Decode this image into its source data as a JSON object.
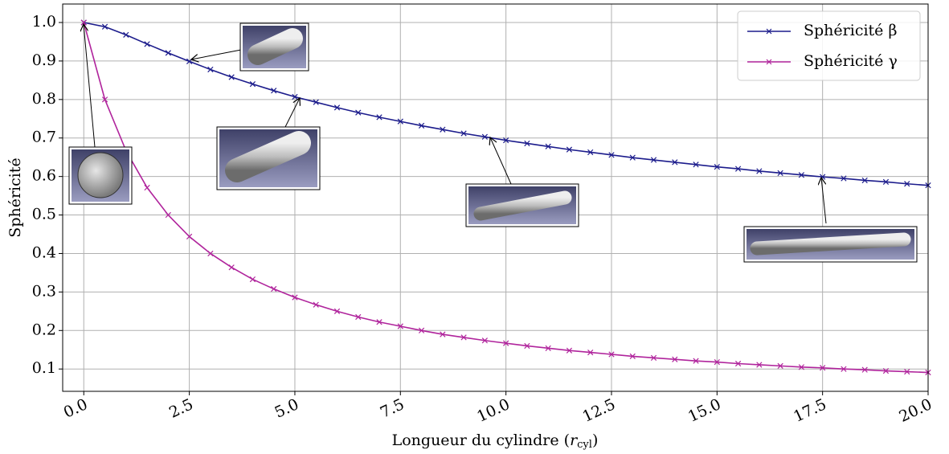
{
  "chart_data": {
    "type": "line",
    "ylabel": "Sphéricité",
    "xlabel": [
      "Longueur du cylindre (",
      "r",
      "cyl",
      ")"
    ],
    "x": [
      0,
      0.5,
      1,
      1.5,
      2,
      2.5,
      3,
      3.5,
      4,
      4.5,
      5,
      5.5,
      6,
      6.5,
      7,
      7.5,
      8,
      8.5,
      9,
      9.5,
      10,
      10.5,
      11,
      11.5,
      12,
      12.5,
      13,
      13.5,
      14,
      14.5,
      15,
      15.5,
      16,
      16.5,
      17,
      17.5,
      18,
      18.5,
      19,
      19.5,
      20
    ],
    "series": [
      {
        "name": "Sphéricité β",
        "color": "#1c1c8c",
        "values": [
          1.0,
          0.989,
          0.968,
          0.944,
          0.921,
          0.899,
          0.878,
          0.858,
          0.84,
          0.823,
          0.807,
          0.793,
          0.779,
          0.766,
          0.754,
          0.743,
          0.732,
          0.722,
          0.712,
          0.703,
          0.694,
          0.686,
          0.678,
          0.67,
          0.663,
          0.656,
          0.649,
          0.643,
          0.637,
          0.631,
          0.625,
          0.62,
          0.614,
          0.609,
          0.604,
          0.599,
          0.595,
          0.59,
          0.586,
          0.581,
          0.577
        ]
      },
      {
        "name": "Sphéricité γ",
        "color": "#b0249c",
        "values": [
          1.0,
          0.8,
          0.667,
          0.571,
          0.5,
          0.444,
          0.4,
          0.364,
          0.333,
          0.308,
          0.286,
          0.267,
          0.25,
          0.235,
          0.222,
          0.211,
          0.2,
          0.19,
          0.182,
          0.174,
          0.167,
          0.16,
          0.154,
          0.148,
          0.143,
          0.138,
          0.133,
          0.129,
          0.125,
          0.121,
          0.118,
          0.114,
          0.111,
          0.108,
          0.105,
          0.103,
          0.1,
          0.098,
          0.095,
          0.093,
          0.091
        ]
      }
    ],
    "xlim": [
      -0.5,
      20
    ],
    "ylim": [
      0.042,
      1.048
    ],
    "xticks": [
      {
        "value": 0,
        "label": "0.0"
      },
      2.5,
      {
        "value": 5,
        "label": "5.0"
      },
      7.5,
      {
        "value": 10,
        "label": "10.0"
      },
      12.5,
      {
        "value": 15,
        "label": "15.0"
      },
      17.5,
      {
        "value": 20,
        "label": "20.0"
      }
    ],
    "yticks": [
      0.1,
      0.2,
      0.3,
      0.4,
      0.5,
      0.6,
      0.7,
      0.8,
      0.9,
      {
        "value": 1,
        "label": "1.0"
      }
    ],
    "grid": true,
    "legend": "upper right"
  }
}
